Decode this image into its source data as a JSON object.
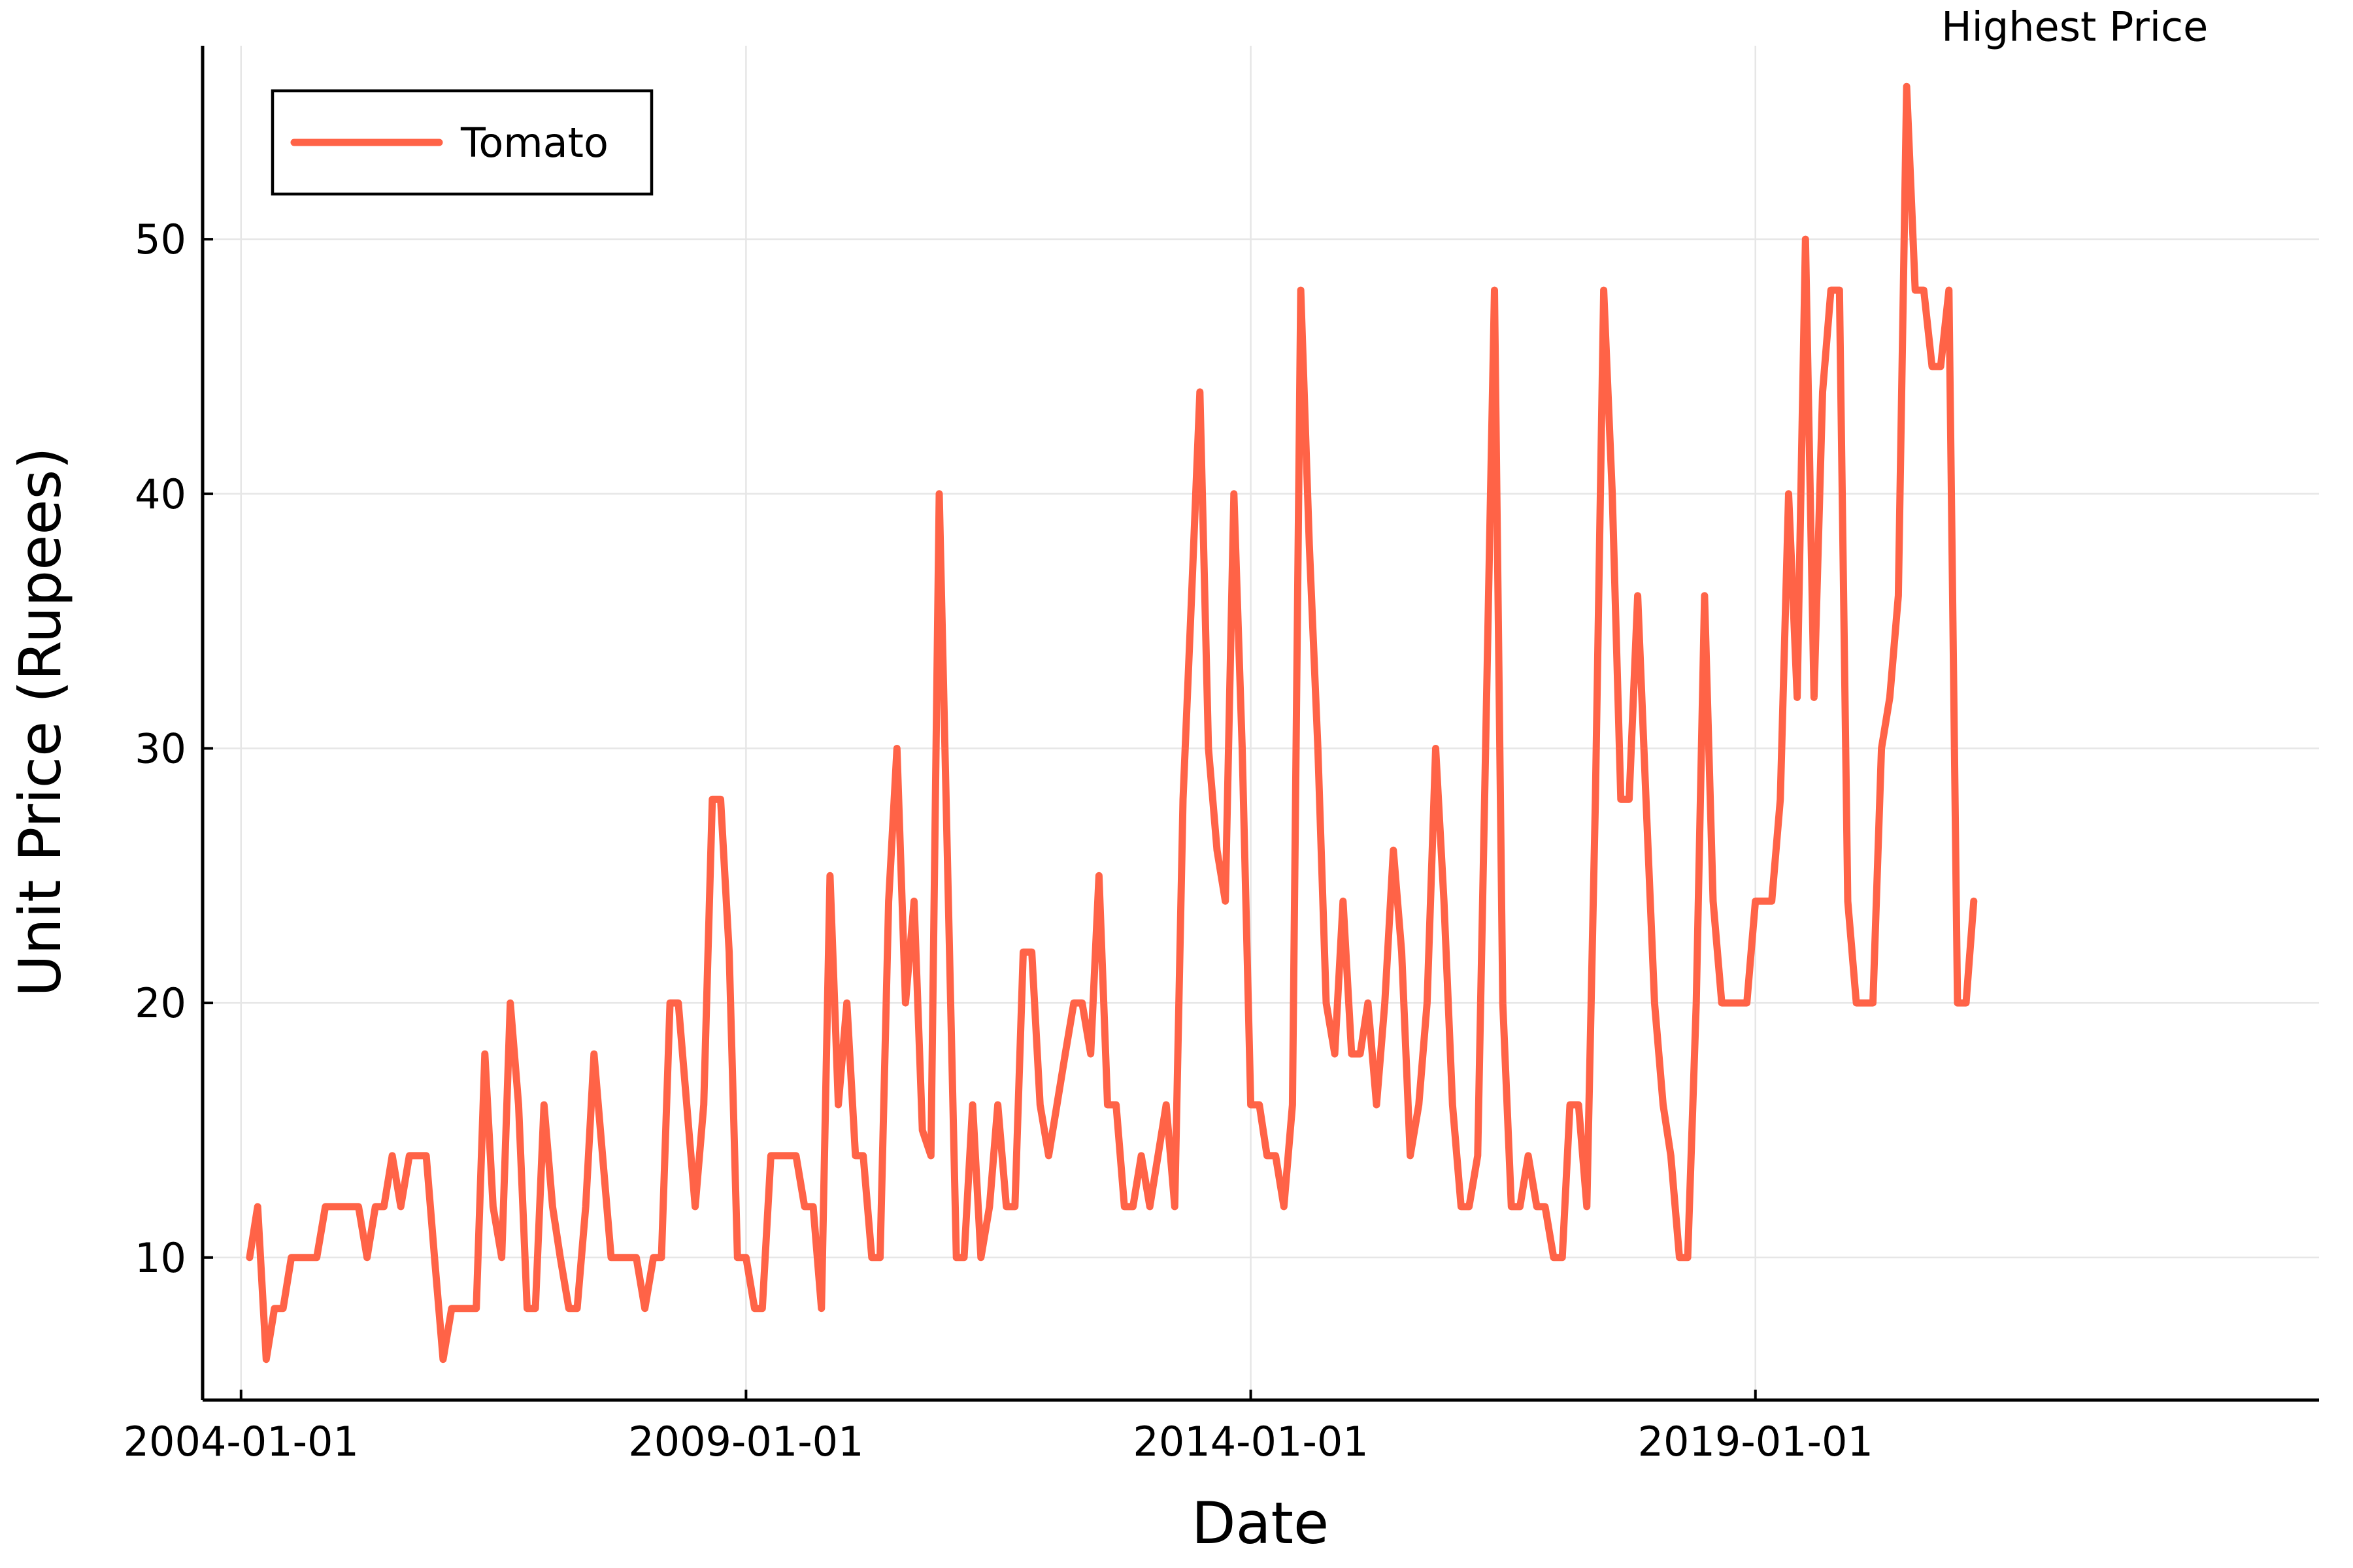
{
  "chart_data": {
    "type": "line",
    "xlabel": "Date",
    "ylabel": "Unit Price (Rupees)",
    "x_ticks": [
      "2004-01-01",
      "2009-01-01",
      "2014-01-01",
      "2019-01-01"
    ],
    "y_ticks": [
      10,
      20,
      30,
      40,
      50
    ],
    "xlim": [
      "2003-08-15",
      "2024-08-01"
    ],
    "ylim": [
      4.4,
      57.6
    ],
    "grid": true,
    "legend": "top-left",
    "annotations": [
      {
        "text": "Highest Price",
        "x": "2022-03-01",
        "y": 56
      }
    ],
    "series": [
      {
        "name": "Tomato",
        "color": "#ff6347",
        "points": [
          [
            "2004-02-01",
            10
          ],
          [
            "2004-03-01",
            12
          ],
          [
            "2004-04-01",
            6
          ],
          [
            "2004-05-01",
            8
          ],
          [
            "2004-06-01",
            8
          ],
          [
            "2004-07-01",
            10
          ],
          [
            "2004-09-01",
            10
          ],
          [
            "2004-10-01",
            10
          ],
          [
            "2004-11-01",
            12
          ],
          [
            "2005-01-01",
            12
          ],
          [
            "2005-02-01",
            12
          ],
          [
            "2005-03-01",
            12
          ],
          [
            "2005-04-01",
            10
          ],
          [
            "2005-05-01",
            12
          ],
          [
            "2005-06-01",
            12
          ],
          [
            "2005-07-01",
            14
          ],
          [
            "2005-08-01",
            12
          ],
          [
            "2005-09-01",
            14
          ],
          [
            "2005-10-01",
            14
          ],
          [
            "2005-11-01",
            14
          ],
          [
            "2005-12-01",
            10
          ],
          [
            "2006-01-01",
            6
          ],
          [
            "2006-02-01",
            8
          ],
          [
            "2006-03-01",
            8
          ],
          [
            "2006-04-01",
            8
          ],
          [
            "2006-05-01",
            8
          ],
          [
            "2006-06-01",
            18
          ],
          [
            "2006-07-01",
            12
          ],
          [
            "2006-08-01",
            10
          ],
          [
            "2006-09-01",
            20
          ],
          [
            "2006-10-01",
            16
          ],
          [
            "2006-11-01",
            8
          ],
          [
            "2006-12-01",
            8
          ],
          [
            "2007-01-01",
            16
          ],
          [
            "2007-02-01",
            12
          ],
          [
            "2007-03-01",
            10
          ],
          [
            "2007-04-01",
            8
          ],
          [
            "2007-05-01",
            8
          ],
          [
            "2007-06-01",
            12
          ],
          [
            "2007-07-01",
            18
          ],
          [
            "2007-08-01",
            14
          ],
          [
            "2007-09-01",
            10
          ],
          [
            "2007-10-01",
            10
          ],
          [
            "2007-11-01",
            10
          ],
          [
            "2007-12-01",
            10
          ],
          [
            "2008-01-01",
            8
          ],
          [
            "2008-02-01",
            10
          ],
          [
            "2008-03-01",
            10
          ],
          [
            "2008-04-01",
            20
          ],
          [
            "2008-05-01",
            20
          ],
          [
            "2008-07-01",
            12
          ],
          [
            "2008-08-01",
            16
          ],
          [
            "2008-09-01",
            28
          ],
          [
            "2008-10-01",
            28
          ],
          [
            "2008-11-01",
            22
          ],
          [
            "2008-12-01",
            10
          ],
          [
            "2009-01-01",
            10
          ],
          [
            "2009-02-01",
            8
          ],
          [
            "2009-03-01",
            8
          ],
          [
            "2009-04-01",
            14
          ],
          [
            "2009-05-01",
            14
          ],
          [
            "2009-06-01",
            14
          ],
          [
            "2009-07-01",
            14
          ],
          [
            "2009-08-01",
            12
          ],
          [
            "2009-09-01",
            12
          ],
          [
            "2009-10-01",
            8
          ],
          [
            "2009-11-01",
            25
          ],
          [
            "2009-12-01",
            16
          ],
          [
            "2010-01-01",
            20
          ],
          [
            "2010-02-01",
            14
          ],
          [
            "2010-03-01",
            14
          ],
          [
            "2010-04-01",
            10
          ],
          [
            "2010-05-01",
            10
          ],
          [
            "2010-06-01",
            24
          ],
          [
            "2010-07-01",
            30
          ],
          [
            "2010-08-01",
            20
          ],
          [
            "2010-09-01",
            24
          ],
          [
            "2010-10-01",
            15
          ],
          [
            "2010-11-01",
            14
          ],
          [
            "2010-12-01",
            40
          ],
          [
            "2011-01-01",
            25
          ],
          [
            "2011-02-01",
            10
          ],
          [
            "2011-03-01",
            10
          ],
          [
            "2011-04-01",
            16
          ],
          [
            "2011-05-01",
            10
          ],
          [
            "2011-06-01",
            12
          ],
          [
            "2011-07-01",
            16
          ],
          [
            "2011-08-01",
            12
          ],
          [
            "2011-09-01",
            12
          ],
          [
            "2011-10-01",
            22
          ],
          [
            "2011-11-01",
            22
          ],
          [
            "2011-12-01",
            16
          ],
          [
            "2012-01-01",
            14
          ],
          [
            "2012-03-01",
            18
          ],
          [
            "2012-04-01",
            20
          ],
          [
            "2012-05-01",
            20
          ],
          [
            "2012-06-01",
            18
          ],
          [
            "2012-07-01",
            25
          ],
          [
            "2012-08-01",
            16
          ],
          [
            "2012-09-01",
            16
          ],
          [
            "2012-10-01",
            12
          ],
          [
            "2012-11-01",
            12
          ],
          [
            "2012-12-01",
            14
          ],
          [
            "2013-01-01",
            12
          ],
          [
            "2013-03-01",
            16
          ],
          [
            "2013-04-01",
            12
          ],
          [
            "2013-05-01",
            28
          ],
          [
            "2013-06-01",
            36
          ],
          [
            "2013-07-01",
            44
          ],
          [
            "2013-08-01",
            30
          ],
          [
            "2013-09-01",
            26
          ],
          [
            "2013-10-01",
            24
          ],
          [
            "2013-11-01",
            40
          ],
          [
            "2013-12-01",
            30
          ],
          [
            "2014-01-01",
            16
          ],
          [
            "2014-02-01",
            16
          ],
          [
            "2014-03-01",
            14
          ],
          [
            "2014-04-01",
            14
          ],
          [
            "2014-05-01",
            12
          ],
          [
            "2014-06-01",
            16
          ],
          [
            "2014-07-01",
            48
          ],
          [
            "2014-08-01",
            38
          ],
          [
            "2014-09-01",
            30
          ],
          [
            "2014-10-01",
            20
          ],
          [
            "2014-11-01",
            18
          ],
          [
            "2014-12-01",
            24
          ],
          [
            "2015-01-01",
            18
          ],
          [
            "2015-02-01",
            18
          ],
          [
            "2015-03-01",
            20
          ],
          [
            "2015-04-01",
            16
          ],
          [
            "2015-05-01",
            20
          ],
          [
            "2015-06-01",
            26
          ],
          [
            "2015-07-01",
            22
          ],
          [
            "2015-08-01",
            14
          ],
          [
            "2015-09-01",
            16
          ],
          [
            "2015-10-01",
            20
          ],
          [
            "2015-11-01",
            30
          ],
          [
            "2015-12-01",
            24
          ],
          [
            "2016-01-01",
            16
          ],
          [
            "2016-02-01",
            12
          ],
          [
            "2016-03-01",
            12
          ],
          [
            "2016-04-01",
            14
          ],
          [
            "2016-06-01",
            48
          ],
          [
            "2016-07-01",
            20
          ],
          [
            "2016-08-01",
            12
          ],
          [
            "2016-09-01",
            12
          ],
          [
            "2016-10-01",
            14
          ],
          [
            "2016-11-01",
            12
          ],
          [
            "2016-12-01",
            12
          ],
          [
            "2017-01-01",
            10
          ],
          [
            "2017-02-01",
            10
          ],
          [
            "2017-03-01",
            16
          ],
          [
            "2017-04-01",
            16
          ],
          [
            "2017-05-01",
            12
          ],
          [
            "2017-06-01",
            28
          ],
          [
            "2017-07-01",
            48
          ],
          [
            "2017-08-01",
            40
          ],
          [
            "2017-09-01",
            28
          ],
          [
            "2017-10-01",
            28
          ],
          [
            "2017-11-01",
            36
          ],
          [
            "2017-12-01",
            28
          ],
          [
            "2018-01-01",
            20
          ],
          [
            "2018-02-01",
            16
          ],
          [
            "2018-03-01",
            14
          ],
          [
            "2018-04-01",
            10
          ],
          [
            "2018-05-01",
            10
          ],
          [
            "2018-06-01",
            20
          ],
          [
            "2018-07-01",
            36
          ],
          [
            "2018-08-01",
            24
          ],
          [
            "2018-09-01",
            20
          ],
          [
            "2018-10-01",
            20
          ],
          [
            "2018-11-01",
            20
          ],
          [
            "2018-12-01",
            20
          ],
          [
            "2019-01-01",
            24
          ],
          [
            "2019-02-01",
            24
          ],
          [
            "2019-03-01",
            24
          ],
          [
            "2019-04-01",
            28
          ],
          [
            "2019-05-01",
            40
          ],
          [
            "2019-06-01",
            32
          ],
          [
            "2019-07-01",
            50
          ],
          [
            "2019-08-01",
            32
          ],
          [
            "2019-09-01",
            44
          ],
          [
            "2019-10-01",
            48
          ],
          [
            "2019-11-01",
            48
          ],
          [
            "2019-12-01",
            24
          ],
          [
            "2020-01-01",
            20
          ],
          [
            "2020-02-01",
            20
          ],
          [
            "2020-03-01",
            20
          ],
          [
            "2020-04-01",
            30
          ],
          [
            "2020-05-01",
            32
          ],
          [
            "2020-06-01",
            36
          ],
          [
            "2020-07-01",
            56
          ],
          [
            "2020-08-01",
            48
          ],
          [
            "2020-09-01",
            48
          ],
          [
            "2020-10-01",
            45
          ],
          [
            "2020-11-01",
            45
          ],
          [
            "2020-12-01",
            48
          ],
          [
            "2021-01-01",
            20
          ],
          [
            "2021-02-01",
            20
          ],
          [
            "2021-03-01",
            24
          ]
        ]
      }
    ]
  }
}
